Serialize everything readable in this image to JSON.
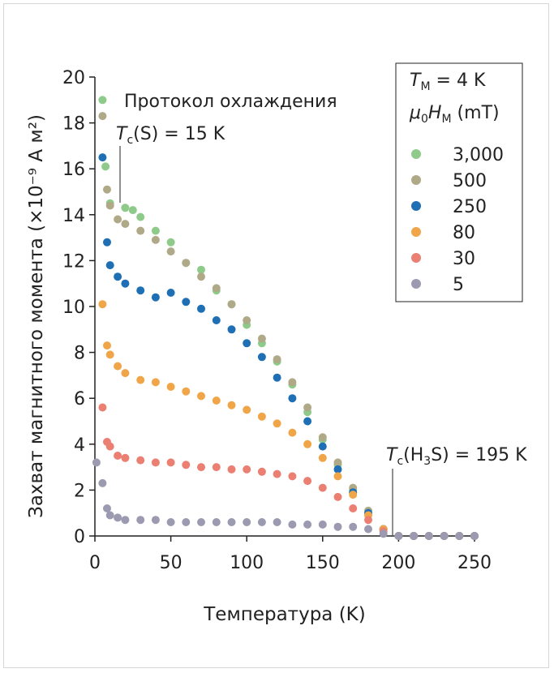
{
  "chart_data": {
    "type": "scatter",
    "title": "Протокол охлаждения",
    "xlabel": "Температура (K)",
    "ylabel": "Захват магнитного момента (×10⁻⁹ А м²)",
    "xlim": [
      0,
      250
    ],
    "ylim": [
      0,
      20
    ],
    "xticks": [
      "0",
      "50",
      "100",
      "150",
      "200",
      "250"
    ],
    "yticks": [
      "0",
      "2",
      "4",
      "6",
      "8",
      "10",
      "12",
      "14",
      "16",
      "18",
      "20"
    ],
    "grid": false,
    "legend_position": "top-right",
    "legend": {
      "header_tm": "T_M = 4 K",
      "header_h": "μ0H_M (mT)"
    },
    "annotations": [
      {
        "text": "T_c(S) = 15 K",
        "x": 15
      },
      {
        "text": "T_c(H3S) = 195 K",
        "x": 195
      }
    ],
    "series": [
      {
        "name": "3,000",
        "color": "#8ecb8a",
        "points": [
          [
            5,
            19
          ],
          [
            7,
            16.1
          ],
          [
            10,
            14.5
          ],
          [
            20,
            14.3
          ],
          [
            25,
            14.2
          ],
          [
            30,
            13.9
          ],
          [
            40,
            13.3
          ],
          [
            50,
            12.8
          ],
          [
            60,
            11.9
          ],
          [
            70,
            11.6
          ],
          [
            80,
            10.7
          ],
          [
            90,
            10.1
          ],
          [
            100,
            9.2
          ],
          [
            110,
            8.4
          ],
          [
            120,
            7.6
          ],
          [
            130,
            6.6
          ],
          [
            140,
            5.4
          ],
          [
            150,
            4.2
          ],
          [
            160,
            3.1
          ],
          [
            170,
            2.0
          ],
          [
            180,
            1.0
          ],
          [
            190,
            0.3
          ],
          [
            200,
            0
          ],
          [
            210,
            0
          ],
          [
            220,
            0
          ],
          [
            230,
            0
          ],
          [
            240,
            0
          ],
          [
            250,
            0
          ]
        ]
      },
      {
        "name": "500",
        "color": "#b0a988",
        "points": [
          [
            5,
            18.3
          ],
          [
            8,
            15.1
          ],
          [
            10,
            14.4
          ],
          [
            15,
            13.8
          ],
          [
            20,
            13.6
          ],
          [
            30,
            13.3
          ],
          [
            40,
            12.9
          ],
          [
            50,
            12.4
          ],
          [
            60,
            11.9
          ],
          [
            70,
            11.3
          ],
          [
            80,
            10.8
          ],
          [
            90,
            10.1
          ],
          [
            100,
            9.4
          ],
          [
            110,
            8.6
          ],
          [
            120,
            7.7
          ],
          [
            130,
            6.7
          ],
          [
            140,
            5.6
          ],
          [
            150,
            4.3
          ],
          [
            160,
            3.2
          ],
          [
            170,
            2.1
          ],
          [
            180,
            1.1
          ],
          [
            190,
            0.3
          ],
          [
            200,
            0
          ],
          [
            210,
            0
          ],
          [
            220,
            0
          ],
          [
            230,
            0
          ],
          [
            240,
            0
          ],
          [
            250,
            0
          ]
        ]
      },
      {
        "name": "250",
        "color": "#1f6fb5",
        "points": [
          [
            5,
            16.5
          ],
          [
            8,
            12.8
          ],
          [
            10,
            11.8
          ],
          [
            15,
            11.3
          ],
          [
            20,
            11.0
          ],
          [
            30,
            10.7
          ],
          [
            40,
            10.4
          ],
          [
            50,
            10.6
          ],
          [
            60,
            10.2
          ],
          [
            70,
            9.9
          ],
          [
            80,
            9.4
          ],
          [
            90,
            9.0
          ],
          [
            100,
            8.4
          ],
          [
            110,
            7.8
          ],
          [
            120,
            6.9
          ],
          [
            130,
            6.0
          ],
          [
            140,
            5.0
          ],
          [
            150,
            3.9
          ],
          [
            160,
            2.9
          ],
          [
            170,
            1.9
          ],
          [
            180,
            1.0
          ],
          [
            190,
            0.3
          ],
          [
            200,
            0
          ],
          [
            210,
            0
          ],
          [
            220,
            0
          ],
          [
            230,
            0
          ],
          [
            240,
            0
          ],
          [
            250,
            0
          ]
        ]
      },
      {
        "name": "80",
        "color": "#f0a648",
        "points": [
          [
            5,
            10.1
          ],
          [
            8,
            8.3
          ],
          [
            10,
            7.9
          ],
          [
            15,
            7.4
          ],
          [
            20,
            7.1
          ],
          [
            30,
            6.8
          ],
          [
            40,
            6.7
          ],
          [
            50,
            6.5
          ],
          [
            60,
            6.3
          ],
          [
            70,
            6.1
          ],
          [
            80,
            5.9
          ],
          [
            90,
            5.7
          ],
          [
            100,
            5.5
          ],
          [
            110,
            5.2
          ],
          [
            120,
            4.9
          ],
          [
            130,
            4.5
          ],
          [
            140,
            4.0
          ],
          [
            150,
            3.4
          ],
          [
            160,
            2.6
          ],
          [
            170,
            1.8
          ],
          [
            180,
            0.9
          ],
          [
            190,
            0.3
          ],
          [
            200,
            0
          ],
          [
            210,
            0
          ],
          [
            220,
            0
          ],
          [
            230,
            0
          ],
          [
            240,
            0
          ],
          [
            250,
            0
          ]
        ]
      },
      {
        "name": "30",
        "color": "#ea7f72",
        "points": [
          [
            5,
            5.6
          ],
          [
            8,
            4.1
          ],
          [
            10,
            3.9
          ],
          [
            15,
            3.5
          ],
          [
            20,
            3.4
          ],
          [
            30,
            3.3
          ],
          [
            40,
            3.2
          ],
          [
            50,
            3.2
          ],
          [
            60,
            3.1
          ],
          [
            70,
            3.0
          ],
          [
            80,
            3.0
          ],
          [
            90,
            2.9
          ],
          [
            100,
            2.9
          ],
          [
            110,
            2.8
          ],
          [
            120,
            2.7
          ],
          [
            130,
            2.6
          ],
          [
            140,
            2.4
          ],
          [
            150,
            2.1
          ],
          [
            160,
            1.7
          ],
          [
            170,
            1.2
          ],
          [
            180,
            0.7
          ],
          [
            190,
            0.2
          ],
          [
            200,
            0
          ],
          [
            210,
            0
          ],
          [
            220,
            0
          ],
          [
            230,
            0
          ],
          [
            240,
            0
          ],
          [
            250,
            0
          ]
        ]
      },
      {
        "name": "5",
        "color": "#9b9ab1",
        "points": [
          [
            1,
            3.2
          ],
          [
            5,
            2.3
          ],
          [
            8,
            1.2
          ],
          [
            10,
            0.9
          ],
          [
            15,
            0.8
          ],
          [
            20,
            0.7
          ],
          [
            30,
            0.7
          ],
          [
            40,
            0.7
          ],
          [
            50,
            0.6
          ],
          [
            60,
            0.6
          ],
          [
            70,
            0.6
          ],
          [
            80,
            0.6
          ],
          [
            90,
            0.6
          ],
          [
            100,
            0.6
          ],
          [
            110,
            0.6
          ],
          [
            120,
            0.6
          ],
          [
            130,
            0.5
          ],
          [
            140,
            0.5
          ],
          [
            150,
            0.5
          ],
          [
            160,
            0.4
          ],
          [
            170,
            0.4
          ],
          [
            180,
            0.3
          ],
          [
            190,
            0.1
          ],
          [
            200,
            0
          ],
          [
            210,
            0
          ],
          [
            220,
            0
          ],
          [
            230,
            0
          ],
          [
            240,
            0
          ],
          [
            250,
            0
          ]
        ]
      }
    ]
  }
}
